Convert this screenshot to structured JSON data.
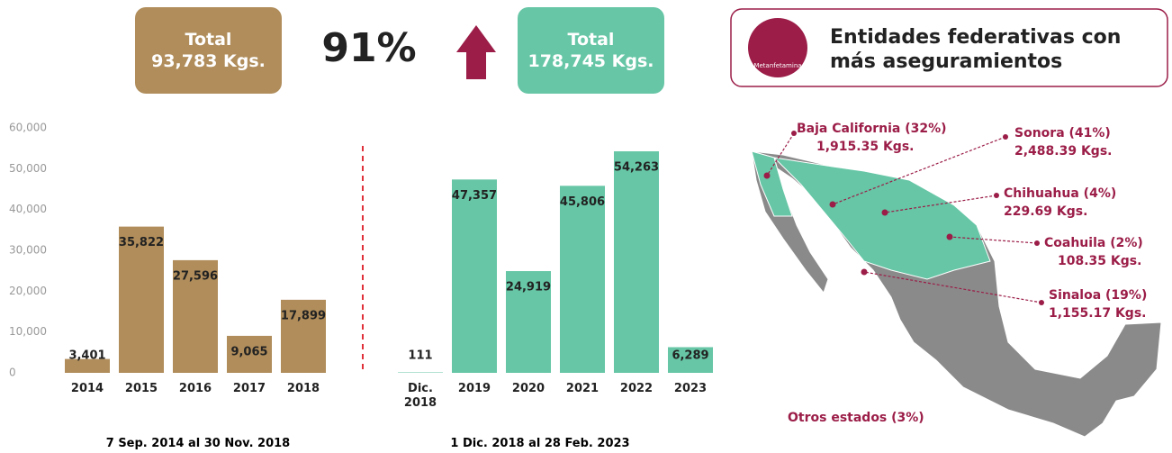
{
  "header": {
    "left_total_label": "Total",
    "left_total": "93,783 Kgs.",
    "change": "91%",
    "right_total_label": "Total",
    "right_total": "178,745 Kgs."
  },
  "map": {
    "title": "Entidades federativas con más aseguramientos",
    "icon_label": "Metanfetamina",
    "states": [
      {
        "name": "Baja California (32%)",
        "amount": "1,915.35 Kgs."
      },
      {
        "name": "Sonora (41%)",
        "amount": "2,488.39 Kgs."
      },
      {
        "name": "Chihuahua (4%)",
        "amount": "229.69 Kgs."
      },
      {
        "name": "Coahuila (2%)",
        "amount": "108.35 Kgs."
      },
      {
        "name": "Sinaloa (19%)",
        "amount": "1,155.17 Kgs."
      }
    ],
    "others": "Otros estados (3%)"
  },
  "chart_data": {
    "type": "bar",
    "categories": [
      "2014",
      "2015",
      "2016",
      "2017",
      "2018",
      "Dic. 2018",
      "2019",
      "2020",
      "2021",
      "2022",
      "2023"
    ],
    "values": [
      3401,
      35822,
      27596,
      9065,
      17899,
      111,
      47357,
      24919,
      45806,
      54263,
      6289
    ],
    "value_labels": [
      "3,401",
      "35,822",
      "27,596",
      "9,065",
      "17,899",
      "111",
      "47,357",
      "24,919",
      "45,806",
      "54,263",
      "6,289"
    ],
    "colors": [
      "#b08d5b",
      "#b08d5b",
      "#b08d5b",
      "#b08d5b",
      "#b08d5b",
      "#66c6a6",
      "#66c6a6",
      "#66c6a6",
      "#66c6a6",
      "#66c6a6",
      "#66c6a6"
    ],
    "ylim": [
      0,
      60000
    ],
    "yticks": [
      0,
      {
        "value": 10000,
        "label": "10,000"
      },
      {
        "value": 20000,
        "label": "20,000"
      },
      {
        "value": 30000,
        "label": "30,000"
      },
      {
        "value": 40000,
        "label": "40,000"
      },
      {
        "value": 50000,
        "label": "50,000"
      },
      {
        "value": 60000,
        "label": "60,000"
      }
    ],
    "periods": [
      "7 Sep. 2014 al 30 Nov. 2018",
      "1 Dic. 2018 al 28 Feb. 2023"
    ]
  }
}
